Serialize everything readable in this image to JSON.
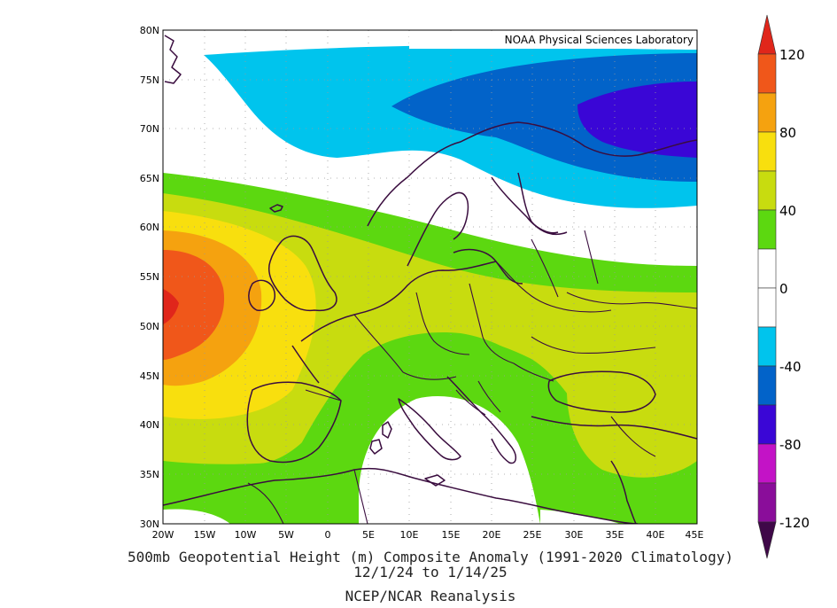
{
  "map": {
    "credit": "NOAA Physical Sciences Laboratory",
    "lat_labels": [
      "80N",
      "75N",
      "70N",
      "65N",
      "60N",
      "55N",
      "50N",
      "45N",
      "40N",
      "35N",
      "30N"
    ],
    "lon_labels": [
      "20W",
      "15W",
      "10W",
      "5W",
      "0",
      "5E",
      "10E",
      "15E",
      "20E",
      "25E",
      "30E",
      "35E",
      "40E",
      "45E"
    ],
    "region": {
      "lon_min": -20,
      "lon_max": 45,
      "lat_min": 30,
      "lat_max": 80
    }
  },
  "colorbar": {
    "labels": [
      "120",
      "80",
      "40",
      "0",
      "-40",
      "-80",
      "-120"
    ],
    "colors": {
      "red": "#e0261b",
      "orange_red": "#f0571a",
      "orange": "#f5a20f",
      "yellow": "#f8df0e",
      "yellow_green": "#c8dc0f",
      "green": "#5cd810",
      "white": "#ffffff",
      "light_blue": "#00c4ed",
      "mid_blue": "#0263c9",
      "dark_blue": "#3a06d6",
      "magenta": "#c313c6",
      "purple": "#8a0d9a",
      "dark_purple": "#3f0848"
    }
  },
  "caption": {
    "line1": "500mb Geopotential Height (m) Composite Anomaly (1991-2020 Climatology)",
    "line2": "12/1/24  to 1/14/25",
    "line3": "NCEP/NCAR Reanalysis"
  }
}
